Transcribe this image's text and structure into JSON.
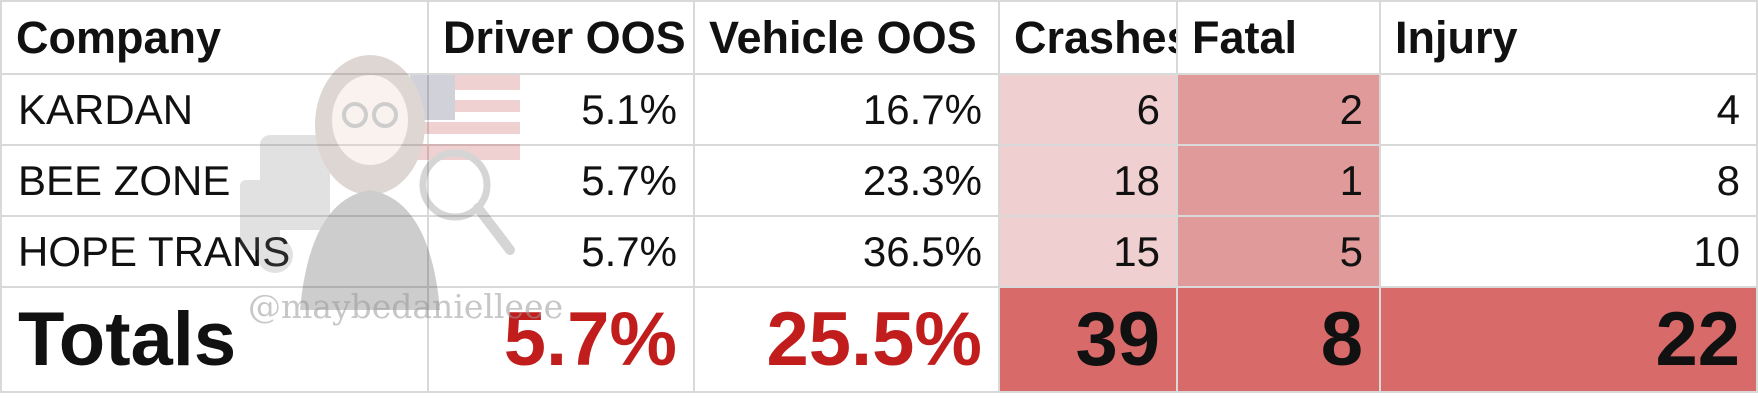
{
  "table": {
    "headers": [
      "Company",
      "Driver OOS",
      "Vehicle OOS",
      "Crashes",
      "Fatal",
      "Injury"
    ],
    "rows": [
      {
        "company": "KARDAN",
        "driver_oos": "5.1%",
        "vehicle_oos": "16.7%",
        "crashes": "6",
        "fatal": "2",
        "injury": "4"
      },
      {
        "company": "BEE ZONE",
        "driver_oos": "5.7%",
        "vehicle_oos": "23.3%",
        "crashes": "18",
        "fatal": "1",
        "injury": "8"
      },
      {
        "company": "HOPE TRANS",
        "driver_oos": "5.7%",
        "vehicle_oos": "36.5%",
        "crashes": "15",
        "fatal": "5",
        "injury": "10"
      }
    ],
    "totals": {
      "label": "Totals",
      "driver_oos": "5.7%",
      "vehicle_oos": "25.5%",
      "crashes": "39",
      "fatal": "8",
      "injury": "22"
    }
  },
  "watermark": {
    "handle": "@maybedanielleee"
  },
  "colors": {
    "total_percent": "#c11d1d",
    "light_red": "#efcfcf",
    "mid_red": "#e09a9a",
    "dark_red": "#d96a6a"
  }
}
